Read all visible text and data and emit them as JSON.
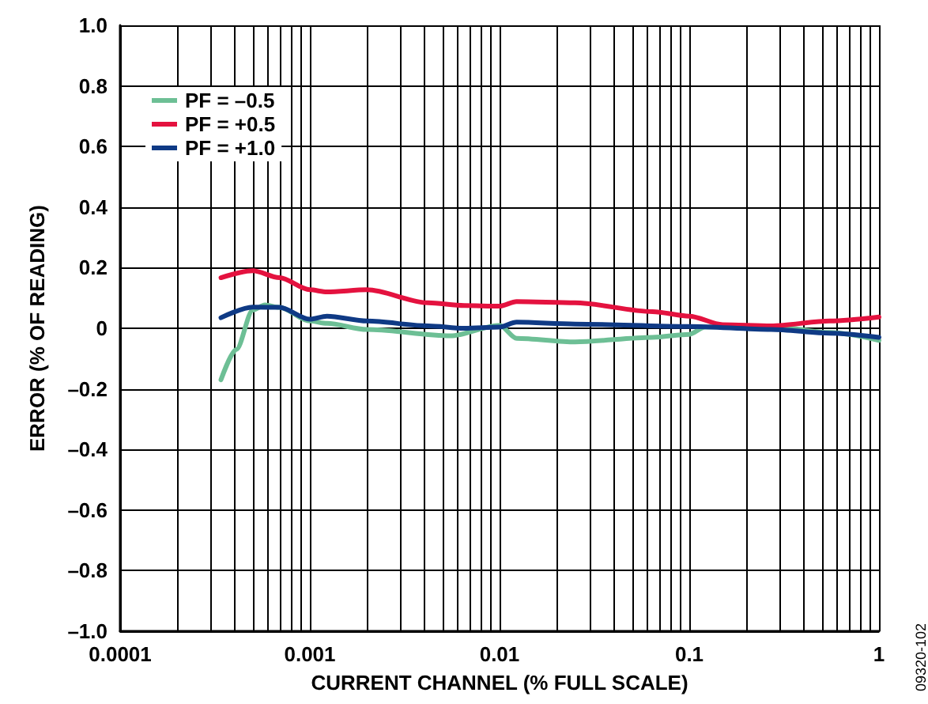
{
  "chart_data": {
    "type": "line",
    "xlabel": "CURRENT CHANNEL (% FULL SCALE)",
    "ylabel": "ERROR (% OF READING)",
    "log": "x",
    "grid": true,
    "legend": "top left",
    "marker": "none",
    "line_style": "solid",
    "xlim": [
      0.0001,
      1
    ],
    "xticks": [
      {
        "value": 0.0001,
        "label": "0.0001"
      },
      {
        "value": 0.0002,
        "label": null
      },
      {
        "value": 0.0003,
        "label": null
      },
      {
        "value": 0.0004,
        "label": null
      },
      {
        "value": 0.0005,
        "label": null
      },
      {
        "value": 0.0006,
        "label": null
      },
      {
        "value": 0.0007,
        "label": null
      },
      {
        "value": 0.0008,
        "label": null
      },
      {
        "value": 0.0009,
        "label": null
      },
      {
        "value": 0.001,
        "label": "0.001"
      },
      {
        "value": 0.002,
        "label": null
      },
      {
        "value": 0.003,
        "label": null
      },
      {
        "value": 0.004,
        "label": null
      },
      {
        "value": 0.005,
        "label": null
      },
      {
        "value": 0.006,
        "label": null
      },
      {
        "value": 0.007,
        "label": null
      },
      {
        "value": 0.008,
        "label": null
      },
      {
        "value": 0.009,
        "label": null
      },
      {
        "value": 0.01,
        "label": "0.01"
      },
      {
        "value": 0.02,
        "label": null
      },
      {
        "value": 0.03,
        "label": null
      },
      {
        "value": 0.04,
        "label": null
      },
      {
        "value": 0.05,
        "label": null
      },
      {
        "value": 0.06,
        "label": null
      },
      {
        "value": 0.07,
        "label": null
      },
      {
        "value": 0.08,
        "label": null
      },
      {
        "value": 0.09,
        "label": null
      },
      {
        "value": 0.1,
        "label": "0.1"
      },
      {
        "value": 0.2,
        "label": null
      },
      {
        "value": 0.3,
        "label": null
      },
      {
        "value": 0.4,
        "label": null
      },
      {
        "value": 0.5,
        "label": null
      },
      {
        "value": 0.6,
        "label": null
      },
      {
        "value": 0.7,
        "label": null
      },
      {
        "value": 0.8,
        "label": null
      },
      {
        "value": 0.9,
        "label": null
      },
      {
        "value": 1,
        "label": "1"
      }
    ],
    "ylim": [
      -1,
      1
    ],
    "yticks": [
      {
        "value": -1,
        "label": "–1.0"
      },
      {
        "value": -0.8,
        "label": "–0.8"
      },
      {
        "value": -0.6,
        "label": "–0.6"
      },
      {
        "value": -0.4,
        "label": "–0.4"
      },
      {
        "value": -0.2,
        "label": "–0.2"
      },
      0,
      0.2,
      0.4,
      0.6,
      0.8,
      {
        "value": 1,
        "label": "1.0"
      }
    ],
    "series": [
      {
        "name": "PF = –0.5",
        "color": "#6dbf95",
        "x": [
          0.00034,
          0.00041,
          0.0005,
          0.00058,
          0.00069,
          0.001,
          0.00123,
          0.002,
          0.0055,
          0.01,
          0.0123,
          0.025,
          0.064,
          0.1,
          0.121,
          0.27,
          0.55,
          1
        ],
        "values": [
          -0.17,
          -0.07,
          0.06,
          0.077,
          0.069,
          0.024,
          0.016,
          -0.004,
          -0.025,
          0.01,
          -0.033,
          -0.045,
          -0.03,
          -0.02,
          0.004,
          0.006,
          -0.014,
          -0.04
        ]
      },
      {
        "name": "PF = +0.5",
        "color": "#e4123f",
        "x": [
          0.00034,
          0.0005,
          0.00069,
          0.001,
          0.00123,
          0.002,
          0.0042,
          0.0065,
          0.01,
          0.0123,
          0.025,
          0.064,
          0.1,
          0.15,
          0.27,
          0.55,
          1
        ],
        "values": [
          0.167,
          0.19,
          0.167,
          0.127,
          0.12,
          0.127,
          0.084,
          0.075,
          0.073,
          0.088,
          0.084,
          0.055,
          0.04,
          0.012,
          0.008,
          0.024,
          0.037
        ]
      },
      {
        "name": "PF = +1.0",
        "color": "#0f3a85",
        "x": [
          0.00034,
          0.0005,
          0.00069,
          0.001,
          0.00123,
          0.002,
          0.0042,
          0.0065,
          0.01,
          0.0123,
          0.025,
          0.1,
          0.27,
          0.55,
          1
        ],
        "values": [
          0.035,
          0.07,
          0.069,
          0.03,
          0.04,
          0.024,
          0.008,
          0,
          0.004,
          0.02,
          0.014,
          0.006,
          -0.004,
          -0.016,
          -0.03
        ]
      }
    ],
    "annotations": [
      "09320-102"
    ]
  }
}
